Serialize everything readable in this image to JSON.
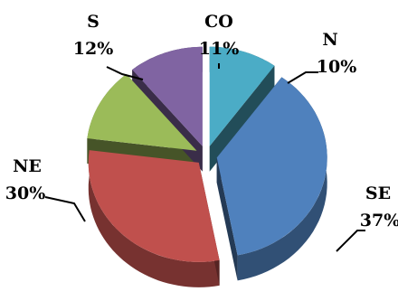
{
  "chart_data": {
    "type": "pie",
    "style": "3d-exploded",
    "legend": "none",
    "slices": [
      {
        "name": "N",
        "label": "N",
        "percent_label": "10%",
        "value": 10,
        "color": "#4bacc6"
      },
      {
        "name": "SE",
        "label": "SE",
        "percent_label": "37%",
        "value": 37,
        "color": "#4f81bd"
      },
      {
        "name": "NE",
        "label": "NE",
        "percent_label": "30%",
        "value": 30,
        "color": "#c0504d"
      },
      {
        "name": "S",
        "label": "S",
        "percent_label": "12%",
        "value": 12,
        "color": "#9bbb59"
      },
      {
        "name": "CO",
        "label": "CO",
        "percent_label": "11%",
        "value": 11,
        "color": "#8064a2"
      }
    ]
  }
}
